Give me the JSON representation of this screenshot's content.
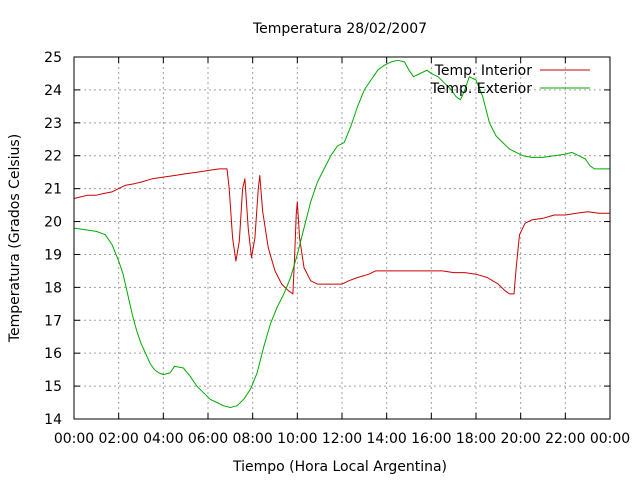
{
  "chart_data": {
    "type": "line",
    "title": "Temperatura 28/02/2007",
    "xlabel": "Tiempo (Hora Local Argentina)",
    "ylabel": "Temperatura (Grados Celsius)",
    "xlim": [
      0,
      24
    ],
    "ylim": [
      14,
      25
    ],
    "xticks": [
      {
        "value": 0,
        "label": "00:00"
      },
      {
        "value": 2,
        "label": "02:00"
      },
      {
        "value": 4,
        "label": "04:00"
      },
      {
        "value": 6,
        "label": "06:00"
      },
      {
        "value": 8,
        "label": "08:00"
      },
      {
        "value": 10,
        "label": "10:00"
      },
      {
        "value": 12,
        "label": "12:00"
      },
      {
        "value": 14,
        "label": "14:00"
      },
      {
        "value": 16,
        "label": "16:00"
      },
      {
        "value": 18,
        "label": "18:00"
      },
      {
        "value": 20,
        "label": "20:00"
      },
      {
        "value": 22,
        "label": "22:00"
      },
      {
        "value": 24,
        "label": "00:00"
      }
    ],
    "yticks": [
      14,
      15,
      16,
      17,
      18,
      19,
      20,
      21,
      22,
      23,
      24,
      25
    ],
    "grid": true,
    "legend_position": "top-right",
    "series": [
      {
        "name": "Temp. Interior",
        "color": "#cc0000",
        "points": [
          [
            0.0,
            20.7
          ],
          [
            0.3,
            20.75
          ],
          [
            0.6,
            20.8
          ],
          [
            1.0,
            20.8
          ],
          [
            1.3,
            20.85
          ],
          [
            1.7,
            20.9
          ],
          [
            2.0,
            21.0
          ],
          [
            2.3,
            21.1
          ],
          [
            2.7,
            21.15
          ],
          [
            3.0,
            21.2
          ],
          [
            3.5,
            21.3
          ],
          [
            4.0,
            21.35
          ],
          [
            4.5,
            21.4
          ],
          [
            5.0,
            21.45
          ],
          [
            5.5,
            21.5
          ],
          [
            6.0,
            21.55
          ],
          [
            6.5,
            21.6
          ],
          [
            6.85,
            21.6
          ],
          [
            6.95,
            21.0
          ],
          [
            7.1,
            19.5
          ],
          [
            7.25,
            18.8
          ],
          [
            7.4,
            19.4
          ],
          [
            7.55,
            21.0
          ],
          [
            7.65,
            21.3
          ],
          [
            7.8,
            19.8
          ],
          [
            7.95,
            18.9
          ],
          [
            8.1,
            19.5
          ],
          [
            8.25,
            21.0
          ],
          [
            8.32,
            21.4
          ],
          [
            8.45,
            20.3
          ],
          [
            8.7,
            19.2
          ],
          [
            9.0,
            18.5
          ],
          [
            9.3,
            18.1
          ],
          [
            9.6,
            17.9
          ],
          [
            9.8,
            17.8
          ],
          [
            9.88,
            19.0
          ],
          [
            9.95,
            20.2
          ],
          [
            10.0,
            20.6
          ],
          [
            10.1,
            19.5
          ],
          [
            10.3,
            18.6
          ],
          [
            10.6,
            18.2
          ],
          [
            10.9,
            18.1
          ],
          [
            11.5,
            18.1
          ],
          [
            12.0,
            18.1
          ],
          [
            12.3,
            18.2
          ],
          [
            12.7,
            18.3
          ],
          [
            13.2,
            18.4
          ],
          [
            13.5,
            18.5
          ],
          [
            14.0,
            18.5
          ],
          [
            15.0,
            18.5
          ],
          [
            16.0,
            18.5
          ],
          [
            16.5,
            18.5
          ],
          [
            17.0,
            18.45
          ],
          [
            17.5,
            18.45
          ],
          [
            18.0,
            18.4
          ],
          [
            18.5,
            18.3
          ],
          [
            19.0,
            18.1
          ],
          [
            19.3,
            17.9
          ],
          [
            19.5,
            17.8
          ],
          [
            19.7,
            17.8
          ],
          [
            19.8,
            18.6
          ],
          [
            19.95,
            19.6
          ],
          [
            20.2,
            19.95
          ],
          [
            20.5,
            20.05
          ],
          [
            21.0,
            20.1
          ],
          [
            21.5,
            20.2
          ],
          [
            22.0,
            20.2
          ],
          [
            22.5,
            20.25
          ],
          [
            23.0,
            20.3
          ],
          [
            23.5,
            20.25
          ],
          [
            24.0,
            20.25
          ]
        ]
      },
      {
        "name": "Temp. Exterior",
        "color": "#00aa00",
        "points": [
          [
            0.0,
            19.8
          ],
          [
            0.5,
            19.75
          ],
          [
            1.0,
            19.7
          ],
          [
            1.4,
            19.6
          ],
          [
            1.7,
            19.3
          ],
          [
            2.0,
            18.8
          ],
          [
            2.2,
            18.4
          ],
          [
            2.4,
            17.8
          ],
          [
            2.6,
            17.2
          ],
          [
            2.8,
            16.7
          ],
          [
            3.0,
            16.3
          ],
          [
            3.2,
            16.0
          ],
          [
            3.4,
            15.7
          ],
          [
            3.6,
            15.5
          ],
          [
            3.8,
            15.4
          ],
          [
            4.0,
            15.35
          ],
          [
            4.3,
            15.4
          ],
          [
            4.5,
            15.6
          ],
          [
            4.9,
            15.55
          ],
          [
            5.2,
            15.3
          ],
          [
            5.5,
            15.0
          ],
          [
            5.8,
            14.8
          ],
          [
            6.1,
            14.6
          ],
          [
            6.4,
            14.5
          ],
          [
            6.7,
            14.4
          ],
          [
            7.0,
            14.35
          ],
          [
            7.3,
            14.4
          ],
          [
            7.6,
            14.6
          ],
          [
            7.9,
            14.9
          ],
          [
            8.2,
            15.4
          ],
          [
            8.5,
            16.2
          ],
          [
            8.8,
            16.9
          ],
          [
            9.1,
            17.4
          ],
          [
            9.4,
            17.8
          ],
          [
            9.7,
            18.3
          ],
          [
            10.0,
            19.0
          ],
          [
            10.3,
            19.8
          ],
          [
            10.6,
            20.6
          ],
          [
            10.9,
            21.2
          ],
          [
            11.2,
            21.6
          ],
          [
            11.5,
            22.0
          ],
          [
            11.8,
            22.3
          ],
          [
            12.1,
            22.4
          ],
          [
            12.4,
            22.9
          ],
          [
            12.7,
            23.5
          ],
          [
            13.0,
            24.0
          ],
          [
            13.3,
            24.3
          ],
          [
            13.6,
            24.6
          ],
          [
            13.9,
            24.75
          ],
          [
            14.2,
            24.85
          ],
          [
            14.5,
            24.9
          ],
          [
            14.8,
            24.85
          ],
          [
            15.0,
            24.6
          ],
          [
            15.2,
            24.4
          ],
          [
            15.5,
            24.5
          ],
          [
            15.8,
            24.6
          ],
          [
            16.0,
            24.5
          ],
          [
            16.3,
            24.4
          ],
          [
            16.6,
            24.2
          ],
          [
            16.9,
            24.0
          ],
          [
            17.1,
            23.8
          ],
          [
            17.3,
            23.7
          ],
          [
            17.5,
            24.0
          ],
          [
            17.7,
            24.4
          ],
          [
            18.0,
            24.3
          ],
          [
            18.3,
            23.8
          ],
          [
            18.6,
            23.0
          ],
          [
            18.9,
            22.6
          ],
          [
            19.2,
            22.4
          ],
          [
            19.5,
            22.2
          ],
          [
            19.8,
            22.1
          ],
          [
            20.1,
            22.0
          ],
          [
            20.5,
            21.95
          ],
          [
            21.0,
            21.95
          ],
          [
            21.5,
            22.0
          ],
          [
            22.0,
            22.05
          ],
          [
            22.3,
            22.1
          ],
          [
            22.6,
            22.0
          ],
          [
            22.9,
            21.9
          ],
          [
            23.1,
            21.7
          ],
          [
            23.3,
            21.6
          ],
          [
            24.0,
            21.6
          ]
        ]
      }
    ]
  }
}
